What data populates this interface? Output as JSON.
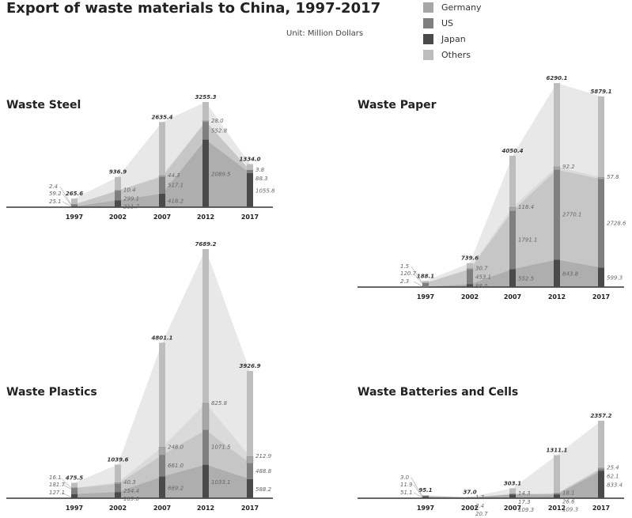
{
  "title": "Export of waste materials to China, 1997-2017",
  "unit": "Unit: Million Dollars",
  "legend": [
    {
      "name": "Germany",
      "color": "#a6a6a6"
    },
    {
      "name": "US",
      "color": "#7f7f7f"
    },
    {
      "name": "Japan",
      "color": "#4a4a4a"
    },
    {
      "name": "Others",
      "color": "#bdbdbd"
    }
  ],
  "panels": {
    "steel": {
      "title": "Waste Steel"
    },
    "paper": {
      "title": "Waste Paper"
    },
    "plastics": {
      "title": "Waste Plastics"
    },
    "batteries": {
      "title": "Waste Batteries and Cells"
    }
  },
  "chart_data": [
    {
      "type": "bar",
      "title": "Waste Steel",
      "categories": [
        "1997",
        "2002",
        "2007",
        "2012",
        "2017"
      ],
      "totals": [
        265.6,
        936.9,
        2635.4,
        3255.3,
        1334.0
      ],
      "series": [
        {
          "name": "Germany",
          "values": [
            2.4,
            10.4,
            44.3,
            28.0,
            3.8
          ]
        },
        {
          "name": "US",
          "values": [
            59.2,
            299.1,
            517.1,
            552.8,
            88.3
          ]
        },
        {
          "name": "Japan",
          "values": [
            25.1,
            211.7,
            418.2,
            2089.5,
            1055.8
          ]
        }
      ]
    },
    {
      "type": "bar",
      "title": "Waste Paper",
      "categories": [
        "1997",
        "2002",
        "2007",
        "2012",
        "2017"
      ],
      "totals": [
        188.1,
        739.6,
        4050.4,
        6290.1,
        5879.1
      ],
      "series": [
        {
          "name": "Germany",
          "values": [
            1.5,
            30.7,
            118.4,
            92.2,
            57.8
          ]
        },
        {
          "name": "US",
          "values": [
            120.7,
            453.1,
            1791.1,
            2770.1,
            2728.6
          ]
        },
        {
          "name": "Japan",
          "values": [
            2.3,
            88.0,
            552.5,
            843.8,
            599.3
          ]
        }
      ]
    },
    {
      "type": "bar",
      "title": "Waste Plastics",
      "categories": [
        "1997",
        "2002",
        "2007",
        "2012",
        "2017"
      ],
      "totals": [
        475.5,
        1039.6,
        4801.1,
        7689.2,
        3926.9
      ],
      "series": [
        {
          "name": "Germany",
          "values": [
            16.1,
            40.3,
            248.0,
            825.8,
            212.9
          ]
        },
        {
          "name": "US",
          "values": [
            181.7,
            254.4,
            661.0,
            1071.5,
            488.8
          ]
        },
        {
          "name": "Japan",
          "values": [
            127.1,
            189.0,
            669.2,
            1033.1,
            588.2
          ]
        }
      ]
    },
    {
      "type": "bar",
      "title": "Waste Batteries and Cells",
      "categories": [
        "1997",
        "2002",
        "2007",
        "2012",
        "2017"
      ],
      "totals": [
        95.1,
        37.0,
        303.1,
        1311.1,
        2357.2
      ],
      "series": [
        {
          "name": "Germany",
          "values": [
            3.0,
            1.7,
            14.3,
            18.1,
            25.4
          ]
        },
        {
          "name": "US",
          "values": [
            11.9,
            2.4,
            17.3,
            26.6,
            62.1
          ]
        },
        {
          "name": "Japan",
          "values": [
            51.1,
            20.7,
            109.3,
            109.3,
            833.4
          ]
        }
      ]
    }
  ]
}
